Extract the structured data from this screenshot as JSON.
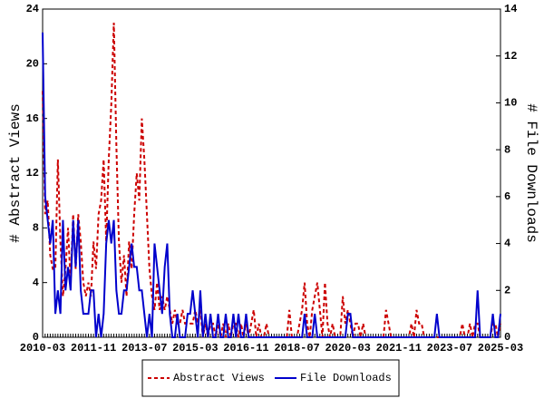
{
  "chart_data": {
    "type": "line",
    "categories": [
      "2010-03",
      null,
      null,
      null,
      null,
      null,
      null,
      null,
      null,
      null,
      null,
      null,
      null,
      null,
      null,
      null,
      null,
      null,
      null,
      null,
      "2011-11",
      null,
      null,
      null,
      null,
      null,
      null,
      null,
      null,
      null,
      null,
      null,
      null,
      null,
      null,
      null,
      null,
      null,
      null,
      null,
      "2013-07",
      null,
      null,
      null,
      null,
      null,
      null,
      null,
      null,
      null,
      null,
      null,
      null,
      null,
      null,
      null,
      null,
      null,
      null,
      null,
      "2015-03",
      null,
      null,
      null,
      null,
      null,
      null,
      null,
      null,
      null,
      null,
      null,
      null,
      null,
      null,
      null,
      null,
      null,
      null,
      null,
      "2016-11",
      null,
      null,
      null,
      null,
      null,
      null,
      null,
      null,
      null,
      null,
      null,
      null,
      null,
      null,
      null,
      null,
      null,
      null,
      null,
      "2018-07",
      null,
      null,
      null,
      null,
      null,
      null,
      null,
      null,
      null,
      null,
      null,
      null,
      null,
      null,
      null,
      null,
      null,
      null,
      null,
      "2020-03",
      null,
      null,
      null,
      null,
      null,
      null,
      null,
      null,
      null,
      null,
      null,
      null,
      null,
      null,
      null,
      null,
      null,
      null,
      null,
      "2021-11",
      null,
      null,
      null,
      null,
      null,
      null,
      null,
      null,
      null,
      null,
      null,
      null,
      null,
      null,
      null,
      null,
      null,
      null,
      null,
      "2023-07",
      null,
      null,
      null,
      null,
      null,
      null,
      null,
      null,
      null,
      null,
      null,
      null,
      null,
      null,
      null,
      null,
      null,
      null,
      null,
      "2025-03"
    ],
    "series": [
      {
        "name": "Abstract Views",
        "color": "#cc0000",
        "dashed": true,
        "axis": "y",
        "values": [
          18,
          9,
          10,
          6,
          5,
          5,
          13,
          7,
          3,
          5,
          8,
          4,
          9,
          5,
          9,
          7,
          4,
          3,
          4,
          3,
          7,
          5,
          9,
          10,
          13,
          7,
          13,
          17,
          23,
          14,
          7,
          4,
          6,
          3,
          7,
          5,
          9,
          12,
          10,
          16,
          13,
          9,
          5,
          3,
          2,
          4,
          2,
          3,
          2,
          3,
          2,
          1,
          2,
          1,
          1,
          2,
          1,
          1,
          1,
          1,
          2,
          1,
          2,
          0,
          1,
          0,
          1,
          1,
          0,
          1,
          0,
          1,
          0,
          1,
          0,
          1,
          1,
          0,
          1,
          0,
          1,
          0,
          1,
          2,
          0,
          1,
          0,
          0,
          1,
          0,
          0,
          0,
          0,
          0,
          0,
          0,
          0,
          2,
          0,
          0,
          0,
          1,
          2,
          4,
          1,
          0,
          2,
          3,
          4,
          2,
          0,
          4,
          1,
          0,
          1,
          0,
          0,
          0,
          3,
          1,
          2,
          1,
          0,
          1,
          1,
          0,
          1,
          0,
          0,
          0,
          0,
          0,
          0,
          0,
          0,
          2,
          1,
          0,
          0,
          0,
          0,
          0,
          0,
          0,
          0,
          1,
          0,
          2,
          1,
          1,
          0,
          0,
          0,
          0,
          0,
          0,
          0,
          0,
          0,
          0,
          0,
          0,
          0,
          0,
          0,
          1,
          0,
          0,
          1,
          0,
          1,
          1,
          0,
          0,
          0,
          0,
          0,
          1,
          1,
          0,
          1
        ]
      },
      {
        "name": "File Downloads",
        "color": "#0000cc",
        "dashed": false,
        "axis": "y2",
        "values": [
          13,
          6,
          5,
          4,
          5,
          1,
          2,
          1,
          5,
          2,
          3,
          2,
          5,
          3,
          5,
          2,
          1,
          1,
          1,
          2,
          2,
          0,
          1,
          0,
          1,
          4,
          5,
          4,
          5,
          2,
          1,
          1,
          2,
          2,
          3,
          4,
          3,
          3,
          2,
          2,
          1,
          0,
          1,
          0,
          4,
          3,
          2,
          1,
          3,
          4,
          1,
          0,
          0,
          1,
          0,
          0,
          0,
          1,
          1,
          2,
          1,
          0,
          2,
          0,
          1,
          0,
          1,
          0,
          0,
          1,
          0,
          0,
          1,
          0,
          0,
          1,
          0,
          1,
          0,
          0,
          1,
          0,
          0,
          0,
          0,
          0,
          0,
          0,
          0,
          0,
          0,
          0,
          0,
          0,
          0,
          0,
          0,
          0,
          0,
          0,
          0,
          0,
          0,
          1,
          0,
          0,
          0,
          1,
          0,
          0,
          0,
          0,
          0,
          0,
          0,
          0,
          0,
          0,
          0,
          0,
          1,
          1,
          0,
          0,
          0,
          0,
          0,
          0,
          0,
          0,
          0,
          0,
          0,
          0,
          0,
          0,
          0,
          0,
          0,
          0,
          0,
          0,
          0,
          0,
          0,
          0,
          0,
          0,
          0,
          0,
          0,
          0,
          0,
          0,
          0,
          1,
          0,
          0,
          0,
          0,
          0,
          0,
          0,
          0,
          0,
          0,
          0,
          0,
          0,
          0,
          0,
          2,
          0,
          0,
          0,
          0,
          0,
          1,
          0,
          0,
          1
        ]
      }
    ],
    "y_label": "# Abstract Views",
    "y2_label": "# File Downloads",
    "ylim": [
      0,
      24
    ],
    "yticks": [
      0,
      4,
      8,
      12,
      16,
      20,
      24
    ],
    "y2lim": [
      0,
      14
    ],
    "y2ticks": [
      0,
      2,
      4,
      6,
      8,
      10,
      12,
      14
    ],
    "legend": "bottom"
  }
}
